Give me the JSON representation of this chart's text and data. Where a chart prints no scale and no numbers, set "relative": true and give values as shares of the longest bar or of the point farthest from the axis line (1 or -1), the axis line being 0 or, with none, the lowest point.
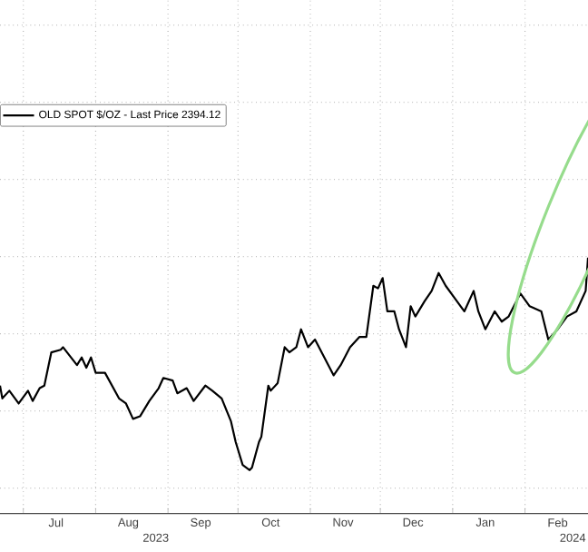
{
  "chart_data": {
    "type": "line",
    "relative": true,
    "x": [
      "2023-06-21",
      "2023-06-22",
      "2023-06-25",
      "2023-06-29",
      "2023-07-03",
      "2023-07-05",
      "2023-07-08",
      "2023-07-10",
      "2023-07-13",
      "2023-07-17",
      "2023-07-18",
      "2023-07-24",
      "2023-07-26",
      "2023-07-28",
      "2023-07-30",
      "2023-08-01",
      "2023-08-05",
      "2023-08-11",
      "2023-08-14",
      "2023-08-17",
      "2023-08-20",
      "2023-08-24",
      "2023-08-28",
      "2023-08-30",
      "2023-09-03",
      "2023-09-05",
      "2023-09-09",
      "2023-09-12",
      "2023-09-17",
      "2023-09-20",
      "2023-09-24",
      "2023-09-28",
      "2023-09-30",
      "2023-10-03",
      "2023-10-06",
      "2023-10-07",
      "2023-10-10",
      "2023-10-11",
      "2023-10-14",
      "2023-10-15",
      "2023-10-18",
      "2023-10-21",
      "2023-10-23",
      "2023-10-26",
      "2023-10-28",
      "2023-10-31",
      "2023-11-03",
      "2023-11-07",
      "2023-11-11",
      "2023-11-14",
      "2023-11-18",
      "2023-11-22",
      "2023-11-25",
      "2023-11-28",
      "2023-11-30",
      "2023-12-02",
      "2023-12-04",
      "2023-12-07",
      "2023-12-09",
      "2023-12-12",
      "2023-12-14",
      "2023-12-16",
      "2023-12-20",
      "2023-12-23",
      "2023-12-26",
      "2023-12-29",
      "2024-01-02",
      "2024-01-06",
      "2024-01-10",
      "2024-01-12",
      "2024-01-15",
      "2024-01-19",
      "2024-01-22",
      "2024-01-25",
      "2024-01-30",
      "2024-02-03",
      "2024-02-08",
      "2024-02-11",
      "2024-02-15",
      "2024-02-19",
      "2024-02-23",
      "2024-02-27",
      "2024-02-28"
    ],
    "series": [
      {
        "name": "OLD SPOT $/OZ - Last Price 2394.12",
        "color": "#000000",
        "values": [
          0.5,
          0.45,
          0.48,
          0.43,
          0.48,
          0.44,
          0.49,
          0.5,
          0.63,
          0.64,
          0.65,
          0.58,
          0.61,
          0.57,
          0.61,
          0.55,
          0.55,
          0.45,
          0.43,
          0.37,
          0.38,
          0.44,
          0.49,
          0.53,
          0.52,
          0.47,
          0.49,
          0.44,
          0.5,
          0.48,
          0.45,
          0.36,
          0.28,
          0.19,
          0.17,
          0.18,
          0.28,
          0.3,
          0.5,
          0.48,
          0.51,
          0.65,
          0.63,
          0.65,
          0.72,
          0.65,
          0.68,
          0.61,
          0.54,
          0.58,
          0.65,
          0.69,
          0.69,
          0.89,
          0.88,
          0.92,
          0.79,
          0.79,
          0.72,
          0.65,
          0.81,
          0.77,
          0.83,
          0.87,
          0.94,
          0.89,
          0.84,
          0.79,
          0.87,
          0.79,
          0.72,
          0.79,
          0.75,
          0.77,
          0.86,
          0.81,
          0.79,
          0.68,
          0.72,
          0.77,
          0.79,
          0.87,
          1
        ]
      }
    ],
    "xlim": [
      "2023-06-21",
      "2024-02-28"
    ],
    "xticks": [
      {
        "value": "2023-07-01",
        "label": null
      },
      {
        "value": "2023-07-15",
        "label": "Jul"
      },
      {
        "value": "2023-08-01",
        "label": null
      },
      {
        "value": "2023-08-15",
        "label": "Aug"
      },
      {
        "value": "2023-09-01",
        "label": null
      },
      {
        "value": "2023-09-15",
        "label": "Sep"
      },
      {
        "value": "2023-10-01",
        "label": null
      },
      {
        "value": "2023-10-15",
        "label": "Oct"
      },
      {
        "value": "2023-11-01",
        "label": null
      },
      {
        "value": "2023-11-15",
        "label": "Nov"
      },
      {
        "value": "2023-12-01",
        "label": null
      },
      {
        "value": "2023-12-15",
        "label": "Dec"
      },
      {
        "value": "2024-01-01",
        "label": null
      },
      {
        "value": "2024-01-15",
        "label": "Jan"
      },
      {
        "value": "2024-02-01",
        "label": null
      },
      {
        "value": "2024-02-15",
        "label": "Feb"
      }
    ],
    "annotations": [
      "2023",
      "2024"
    ],
    "grid": true,
    "legend": "top left",
    "marker": "none",
    "line_style": "solid"
  }
}
